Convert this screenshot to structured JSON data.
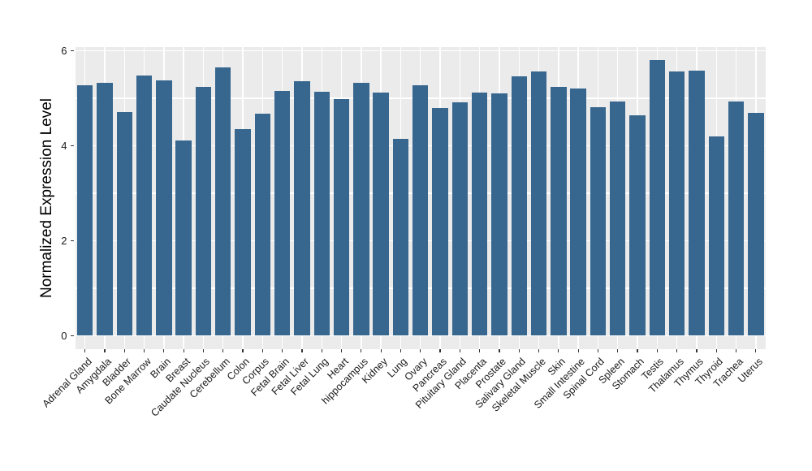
{
  "chart_data": {
    "type": "bar",
    "title": "",
    "xlabel": "",
    "ylabel": "Normalized Expression Level",
    "categories": [
      "Adrenal Gland",
      "Amygdala",
      "Bladder",
      "Bone Marrow",
      "Brain",
      "Breast",
      "Caudate Nucleus",
      "Cerebellum",
      "Colon",
      "Corpus",
      "Fetal Brain",
      "Fetal Liver",
      "Fetal Lung",
      "Heart",
      "hippocampus",
      "Kidney",
      "Lung",
      "Ovary",
      "Pancreas",
      "Pituitary Gland",
      "Placenta",
      "Prostate",
      "Salivary Gland",
      "Skeletal Muscle",
      "Skin",
      "Small Intestine",
      "Spinal Cord",
      "Spleen",
      "Stomach",
      "Testis",
      "Thalamus",
      "Thymus",
      "Thyroid",
      "Trachea",
      "Uterus"
    ],
    "values": [
      5.28,
      5.32,
      4.71,
      5.48,
      5.38,
      4.11,
      5.24,
      5.66,
      4.36,
      4.67,
      5.16,
      5.37,
      5.14,
      4.98,
      5.32,
      5.13,
      4.15,
      5.28,
      4.79,
      4.92,
      5.12,
      5.1,
      5.46,
      5.57,
      5.24,
      5.21,
      4.81,
      4.93,
      4.64,
      5.81,
      5.56,
      5.58,
      4.2,
      4.94,
      4.7
    ],
    "ylim": [
      -0.29,
      6.09
    ],
    "yticks": [
      {
        "value": 0,
        "label": "0"
      },
      {
        "value": 2,
        "label": "2"
      },
      {
        "value": 4,
        "label": "4"
      },
      {
        "value": 6,
        "label": "6"
      }
    ],
    "gridlines_y": [
      0,
      1,
      2,
      3,
      4,
      5,
      6
    ],
    "grid": "on",
    "legend": "none",
    "bar_relative_width": 0.8,
    "colors": {
      "bar": "#37678F",
      "panel_background": "#EBEBEB",
      "gridline": "#FFFFFF",
      "axis_text": "#1A1A1A",
      "tick_mark": "#333333",
      "page_background": "#FFFFFF"
    }
  }
}
